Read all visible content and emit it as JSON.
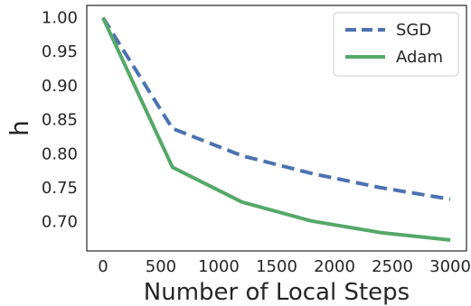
{
  "chart_data": {
    "type": "line",
    "title": "",
    "xlabel": "Number of Local Steps",
    "ylabel": "h",
    "x": [
      0,
      600,
      1200,
      1800,
      2400,
      3000
    ],
    "xlim": [
      -140,
      3140
    ],
    "ylim": [
      0.657,
      1.018
    ],
    "xticks": [
      0,
      500,
      1000,
      1500,
      2000,
      2500,
      3000
    ],
    "xtick_labels": [
      "0",
      "500",
      "1000",
      "1500",
      "2000",
      "2500",
      "3000"
    ],
    "yticks": [
      0.7,
      0.75,
      0.8,
      0.85,
      0.9,
      0.95,
      1.0
    ],
    "ytick_labels": [
      "0.70",
      "0.75",
      "0.80",
      "0.85",
      "0.90",
      "0.95",
      "1.00"
    ],
    "grid": false,
    "legend_position": "top-right",
    "series": [
      {
        "name": "SGD",
        "color": "#4c72b0",
        "linestyle": "dashed",
        "values": [
          1.0,
          0.837,
          0.797,
          0.771,
          0.75,
          0.733
        ]
      },
      {
        "name": "Adam",
        "color": "#55a868",
        "linestyle": "solid",
        "values": [
          1.0,
          0.78,
          0.729,
          0.701,
          0.684,
          0.673
        ]
      }
    ]
  }
}
